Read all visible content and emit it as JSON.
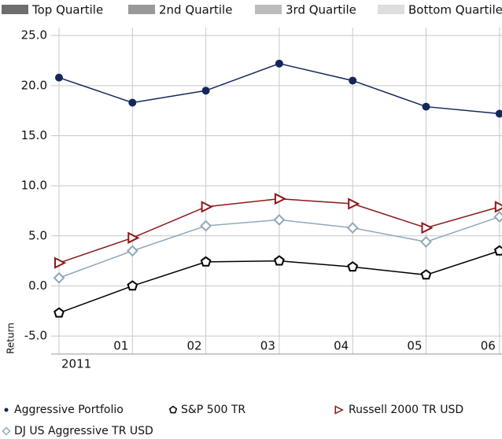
{
  "chart_data": {
    "type": "line",
    "y_label": "Return",
    "x_group_label": "2011",
    "quartile_legend": [
      {
        "name": "Top Quartile",
        "color": "#6e6e6e"
      },
      {
        "name": "2nd Quartile",
        "color": "#999999"
      },
      {
        "name": "3rd Quartile",
        "color": "#bcbcbc"
      },
      {
        "name": "Bottom Quartile",
        "color": "#dedede"
      }
    ],
    "categories": [
      null,
      "01",
      "02",
      "03",
      "04",
      "05",
      "06"
    ],
    "series": [
      {
        "name": "Aggressive Portfolio",
        "color": "#15275a",
        "marker": "circle",
        "values": [
          20.8,
          18.3,
          19.5,
          22.2,
          20.5,
          17.9,
          17.2
        ]
      },
      {
        "name": "S&P 500 TR",
        "color": "#000000",
        "marker": "pentagon",
        "values": [
          -2.7,
          0.0,
          2.4,
          2.5,
          1.9,
          1.1,
          3.5
        ]
      },
      {
        "name": "Russell 2000 TR USD",
        "color": "#8b1a1a",
        "marker": "triangle",
        "values": [
          2.3,
          4.8,
          7.9,
          8.7,
          8.2,
          5.8,
          7.9
        ]
      },
      {
        "name": "DJ US Aggressive TR USD",
        "color": "#8ea9b8",
        "marker": "diamond",
        "values": [
          0.8,
          3.5,
          6.0,
          6.6,
          5.8,
          4.4,
          6.9
        ]
      }
    ],
    "ylim": [
      -6.8,
      25.8
    ],
    "yticks": [
      {
        "value": -5,
        "label": "-5.0"
      },
      {
        "value": 0,
        "label": "0.0"
      },
      {
        "value": 5,
        "label": "5.0"
      },
      {
        "value": 10,
        "label": "10.0"
      },
      {
        "value": 15,
        "label": "15.0"
      },
      {
        "value": 20,
        "label": "20.0"
      },
      {
        "value": 25,
        "label": "25.0"
      }
    ],
    "grid": true
  }
}
